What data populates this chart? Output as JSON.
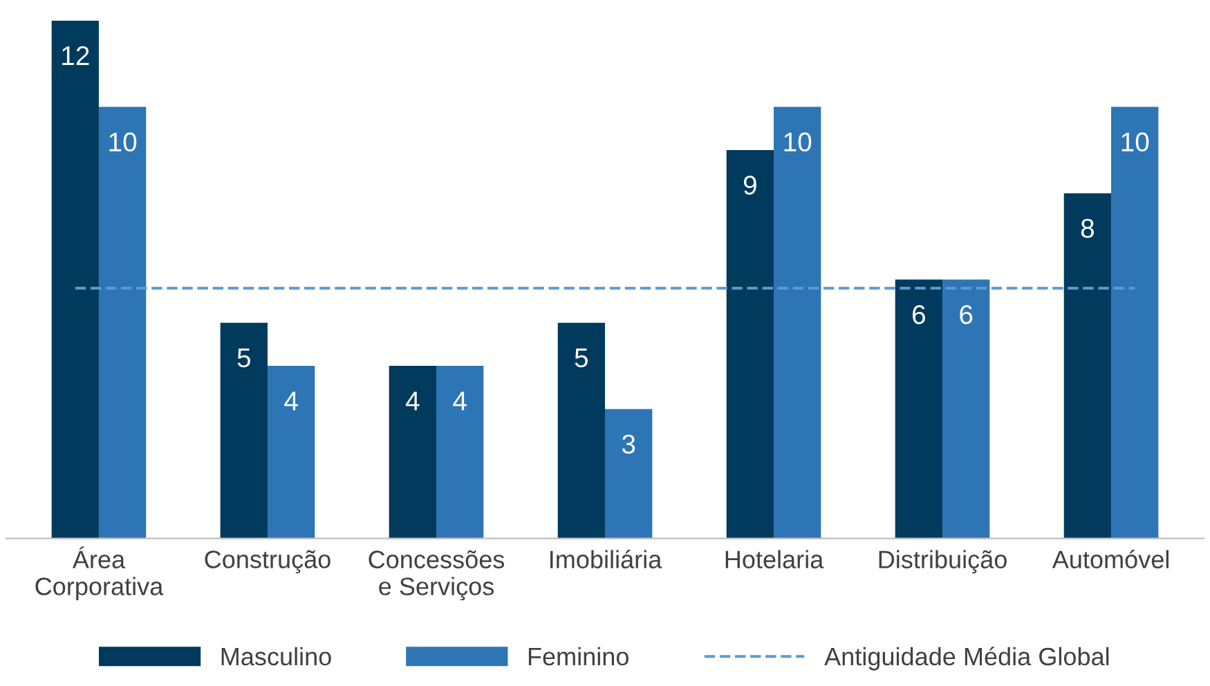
{
  "chart_data": {
    "type": "bar",
    "categories": [
      "Área\nCorporativa",
      "Construção",
      "Concessões\ne Serviços",
      "Imobiliária",
      "Hotelaria",
      "Distribuição",
      "Automóvel"
    ],
    "series": [
      {
        "name": "Masculino",
        "color": "#003a5d",
        "values": [
          12,
          5,
          4,
          5,
          9,
          6,
          8
        ]
      },
      {
        "name": "Feminino",
        "color": "#2e75b6",
        "values": [
          10,
          4,
          4,
          3,
          10,
          6,
          10
        ]
      }
    ],
    "data_labels": true,
    "ref_lines": [
      {
        "axis": "y",
        "value": 5.8,
        "label": "Antiguidade Média Global",
        "color": "#5b9bd5",
        "line_style": "dashed"
      }
    ],
    "legend": "bottom",
    "grid": false
  }
}
